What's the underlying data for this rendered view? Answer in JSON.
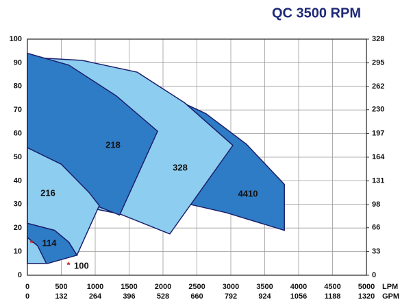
{
  "chart_data": {
    "type": "region",
    "title": "QC 3500 RPM",
    "xlim": [
      0,
      5000
    ],
    "xticks": [
      0,
      500,
      1000,
      1500,
      2000,
      2500,
      3000,
      3500,
      4000,
      4500,
      5000
    ],
    "x_unit": "LPM",
    "x2lim": [
      0,
      1320
    ],
    "x2ticks": [
      0,
      132,
      264,
      396,
      528,
      660,
      792,
      924,
      1056,
      1188,
      1320
    ],
    "x2_unit": "GPM",
    "ylim": [
      0,
      100
    ],
    "yticks": [
      0,
      10,
      20,
      30,
      40,
      50,
      60,
      70,
      80,
      90,
      100
    ],
    "y2lim": [
      0,
      328
    ],
    "y2ticks": [
      0,
      33,
      66,
      98,
      131,
      164,
      197,
      230,
      262,
      295,
      328
    ],
    "grid": true,
    "annotations": [
      "*",
      "*"
    ],
    "series": [
      {
        "name": "4410",
        "color": "#2f7cc6",
        "x": [
          1920,
          2630,
          3230,
          3790,
          3790,
          2930,
          2400,
          2020
        ],
        "values": [
          78,
          68.5,
          55.5,
          38.5,
          19,
          26.5,
          30,
          32
        ]
      },
      {
        "name": "328",
        "color": "#8dcdf0",
        "x": [
          200,
          810,
          1620,
          2320,
          3030,
          2100,
          1360,
          1010
        ],
        "values": [
          92,
          91,
          86,
          73,
          55,
          17.5,
          26,
          28
        ]
      },
      {
        "name": "218",
        "color": "#2f7cc6",
        "x": [
          0,
          610,
          1310,
          1920,
          1360,
          1010,
          0
        ],
        "values": [
          94,
          89,
          76,
          61,
          25.5,
          29.5,
          29.5
        ]
      },
      {
        "name": "216",
        "color": "#8dcdf0",
        "x": [
          0,
          500,
          910,
          1060,
          730,
          610,
          400,
          0
        ],
        "values": [
          54,
          47,
          35,
          29.5,
          8.5,
          14,
          19,
          22
        ]
      },
      {
        "name": "114",
        "color": "#2f7cc6",
        "x": [
          0,
          400,
          610,
          730,
          610,
          300,
          0
        ],
        "values": [
          22,
          19,
          14,
          8.5,
          7.5,
          5,
          5
        ]
      },
      {
        "name": "100",
        "color": "#8dcdf0",
        "x": [
          0,
          150,
          280,
          0
        ],
        "values": [
          16,
          12.5,
          5,
          5
        ]
      }
    ]
  }
}
